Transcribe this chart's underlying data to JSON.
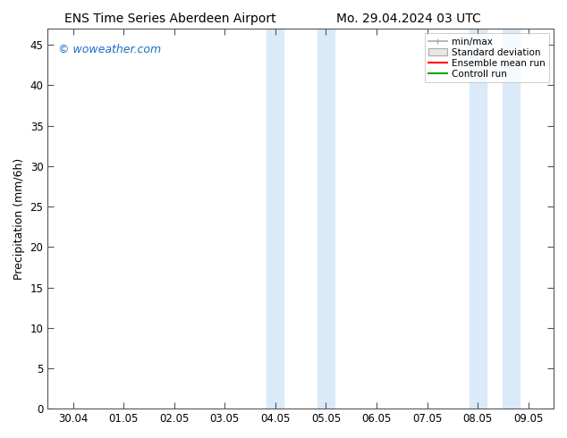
{
  "title_left": "ENS Time Series Aberdeen Airport",
  "title_right": "Mo. 29.04.2024 03 UTC",
  "ylabel": "Precipitation (mm/6h)",
  "watermark": "© woweather.com",
  "watermark_color": "#1a6fc4",
  "ylim": [
    0,
    47
  ],
  "yticks": [
    0,
    5,
    10,
    15,
    20,
    25,
    30,
    35,
    40,
    45
  ],
  "xtick_labels": [
    "30.04",
    "01.05",
    "02.05",
    "03.05",
    "04.05",
    "05.05",
    "06.05",
    "07.05",
    "08.05",
    "09.05"
  ],
  "xtick_positions": [
    0,
    1,
    2,
    3,
    4,
    5,
    6,
    7,
    8,
    9
  ],
  "blue_bands": [
    {
      "xmin": 3.83,
      "xmax": 4.17
    },
    {
      "xmin": 4.83,
      "xmax": 5.17
    },
    {
      "xmin": 7.83,
      "xmax": 8.17
    },
    {
      "xmin": 8.5,
      "xmax": 8.83
    }
  ],
  "band_color": "#dbeaf8",
  "grid_color": "#cccccc",
  "legend_labels": [
    "min/max",
    "Standard deviation",
    "Ensemble mean run",
    "Controll run"
  ],
  "legend_line_colors": [
    "#aaaaaa",
    "#cccccc",
    "#ff0000",
    "#00aa00"
  ],
  "bg_color": "#ffffff",
  "title_fontsize": 10,
  "axis_fontsize": 9,
  "tick_fontsize": 8.5
}
